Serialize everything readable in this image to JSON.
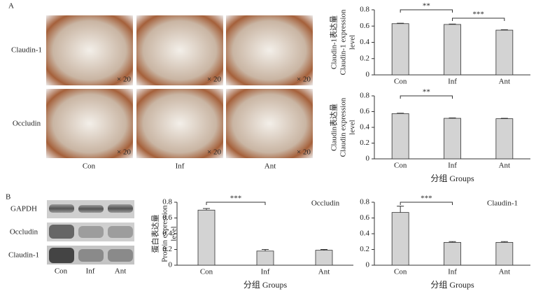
{
  "panel_a": {
    "label": "A",
    "rows": [
      "Claudin-1",
      "Occludin"
    ],
    "columns": [
      "Con",
      "Inf",
      "Ant"
    ],
    "magnification": "× 20"
  },
  "panel_b": {
    "label": "B",
    "bands": [
      "GAPDH",
      "Occludin",
      "Claudin-1"
    ],
    "lanes": [
      "Con",
      "Inf",
      "Ant"
    ]
  },
  "chart_data": [
    {
      "type": "bar",
      "y_label": [
        "Claudin-1表达量",
        "Claudin-1 expression",
        "level"
      ],
      "categories": [
        "Con",
        "Inf",
        "Ant"
      ],
      "values": [
        0.63,
        0.62,
        0.55
      ],
      "errors": [
        0.005,
        0.005,
        0.005
      ],
      "color": "#d3d3d3",
      "ylim": [
        0,
        0.8
      ],
      "yticks": [
        0,
        0.2,
        0.4,
        0.6,
        0.8
      ],
      "significance": [
        {
          "label": "**",
          "between": [
            "Con",
            "Inf"
          ]
        },
        {
          "label": "***",
          "between": [
            "Inf",
            "Ant"
          ]
        }
      ]
    },
    {
      "type": "bar",
      "y_label": [
        "Claudin表达量",
        "Claudin expression",
        "level"
      ],
      "x_label": "分组 Groups",
      "categories": [
        "Con",
        "Inf",
        "Ant"
      ],
      "values": [
        0.575,
        0.515,
        0.51
      ],
      "errors": [
        0.005,
        0.005,
        0.005
      ],
      "color": "#d3d3d3",
      "ylim": [
        0,
        0.8
      ],
      "yticks": [
        0,
        0.2,
        0.4,
        0.6,
        0.8
      ],
      "significance": [
        {
          "label": "**",
          "between": [
            "Con",
            "Inf"
          ]
        }
      ]
    },
    {
      "type": "bar",
      "title": "Occludin",
      "y_label": [
        "蛋白表达量",
        "Protein expression",
        "level"
      ],
      "x_label": "分组 Groups",
      "categories": [
        "Con",
        "Inf",
        "Ant"
      ],
      "values": [
        0.7,
        0.18,
        0.19
      ],
      "errors": [
        0.02,
        0.02,
        0.01
      ],
      "color": "#d3d3d3",
      "ylim": [
        0,
        0.8
      ],
      "yticks": [
        0,
        0.2,
        0.4,
        0.6,
        0.8
      ],
      "significance": [
        {
          "label": "***",
          "between": [
            "Con",
            "Inf"
          ]
        }
      ]
    },
    {
      "type": "bar",
      "title": "Claudin-1",
      "x_label": "分组 Groups",
      "categories": [
        "Con",
        "Inf",
        "Ant"
      ],
      "values": [
        0.67,
        0.29,
        0.29
      ],
      "errors": [
        0.08,
        0.01,
        0.01
      ],
      "color": "#d3d3d3",
      "ylim": [
        0,
        0.8
      ],
      "yticks": [
        0,
        0.2,
        0.4,
        0.6,
        0.8
      ],
      "significance": [
        {
          "label": "***",
          "between": [
            "Con",
            "Inf"
          ]
        }
      ]
    }
  ]
}
